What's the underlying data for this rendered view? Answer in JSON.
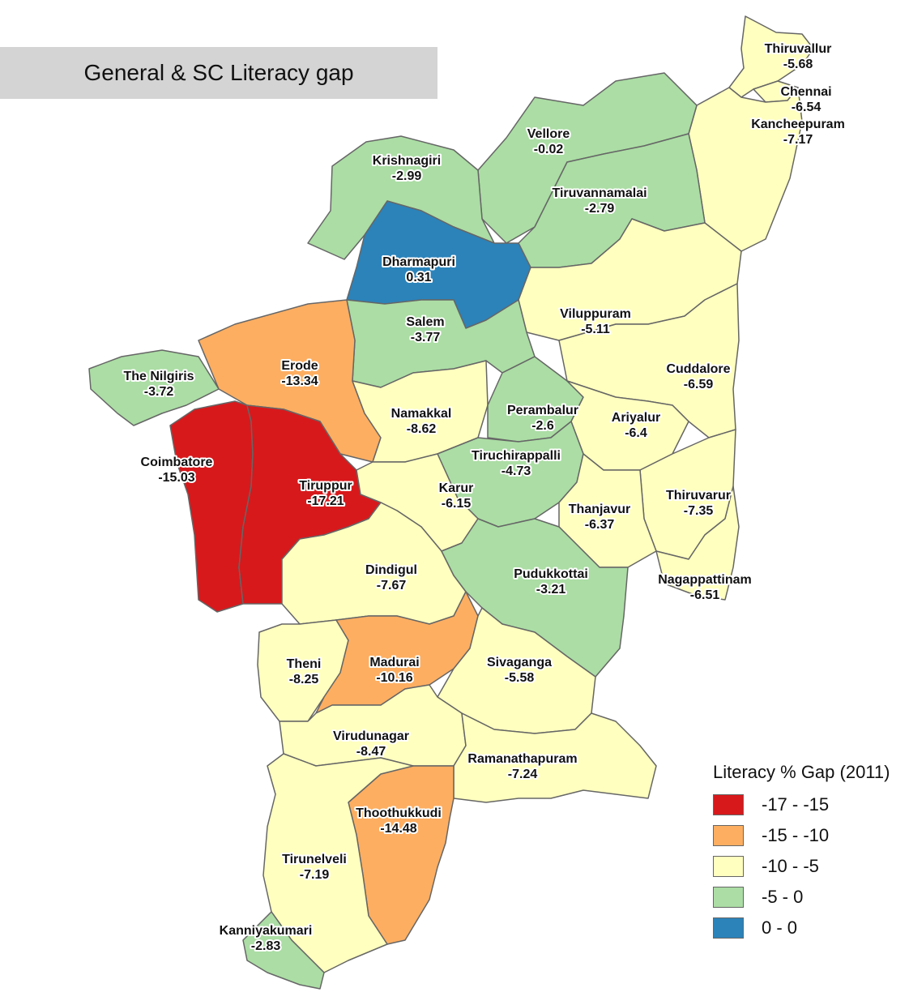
{
  "title": "General & SC Literacy gap",
  "legend": {
    "title": "Literacy % Gap (2011)",
    "classes": [
      {
        "label": "-17 - -15",
        "color": "#d7191c"
      },
      {
        "label": "-15 - -10",
        "color": "#fdae61"
      },
      {
        "label": "-10 - -5",
        "color": "#ffffbf"
      },
      {
        "label": "-5 - 0",
        "color": "#abdda4"
      },
      {
        "label": "0 - 0",
        "color": "#2b83ba"
      }
    ]
  },
  "districts": [
    {
      "name": "Thiruvallur",
      "value": "-5.68",
      "class": 2
    },
    {
      "name": "Chennai",
      "value": "-6.54",
      "class": 2
    },
    {
      "name": "Kancheepuram",
      "value": "-7.17",
      "class": 2
    },
    {
      "name": "Vellore",
      "value": "-0.02",
      "class": 3
    },
    {
      "name": "Krishnagiri",
      "value": "-2.99",
      "class": 3
    },
    {
      "name": "Tiruvannamalai",
      "value": "-2.79",
      "class": 3
    },
    {
      "name": "Dharmapuri",
      "value": "0.31",
      "class": 4
    },
    {
      "name": "Salem",
      "value": "-3.77",
      "class": 3
    },
    {
      "name": "Viluppuram",
      "value": "-5.11",
      "class": 2
    },
    {
      "name": "Erode",
      "value": "-13.34",
      "class": 1
    },
    {
      "name": "The Nilgiris",
      "value": "-3.72",
      "class": 3
    },
    {
      "name": "Cuddalore",
      "value": "-6.59",
      "class": 2
    },
    {
      "name": "Namakkal",
      "value": "-8.62",
      "class": 2
    },
    {
      "name": "Perambalur",
      "value": "-2.6",
      "class": 3
    },
    {
      "name": "Ariyalur",
      "value": "-6.4",
      "class": 2
    },
    {
      "name": "Coimbatore",
      "value": "-15.03",
      "class": 0
    },
    {
      "name": "Tiruchirappalli",
      "value": "-4.73",
      "class": 3
    },
    {
      "name": "Tiruppur",
      "value": "-17.21",
      "class": 0
    },
    {
      "name": "Karur",
      "value": "-6.15",
      "class": 2
    },
    {
      "name": "Thiruvarur",
      "value": "-7.35",
      "class": 2
    },
    {
      "name": "Thanjavur",
      "value": "-6.37",
      "class": 2
    },
    {
      "name": "Dindigul",
      "value": "-7.67",
      "class": 2
    },
    {
      "name": "Pudukkottai",
      "value": "-3.21",
      "class": 3
    },
    {
      "name": "Nagappattinam",
      "value": "-6.51",
      "class": 2
    },
    {
      "name": "Theni",
      "value": "-8.25",
      "class": 2
    },
    {
      "name": "Madurai",
      "value": "-10.16",
      "class": 1
    },
    {
      "name": "Sivaganga",
      "value": "-5.58",
      "class": 2
    },
    {
      "name": "Virudunagar",
      "value": "-8.47",
      "class": 2
    },
    {
      "name": "Ramanathapuram",
      "value": "-7.24",
      "class": 2
    },
    {
      "name": "Thoothukkudi",
      "value": "-14.48",
      "class": 1
    },
    {
      "name": "Tirunelveli",
      "value": "-7.19",
      "class": 2
    },
    {
      "name": "Kanniyakumari",
      "value": "-2.83",
      "class": 3
    }
  ]
}
